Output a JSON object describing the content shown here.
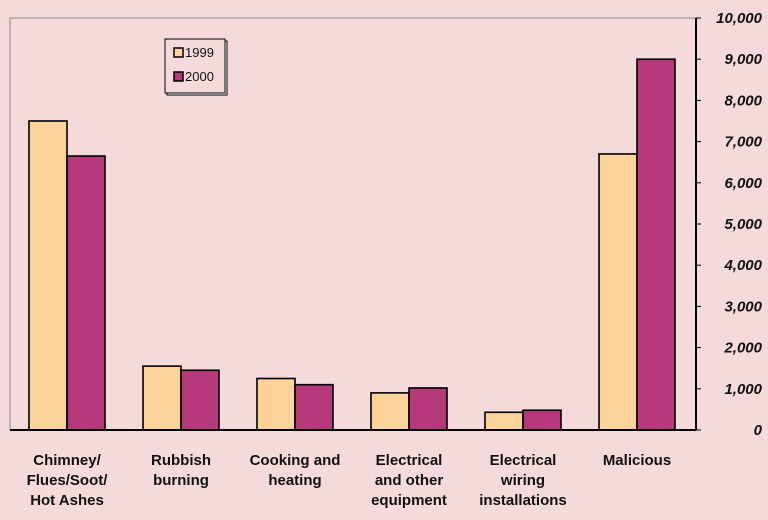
{
  "chart_data": {
    "type": "bar",
    "title": "",
    "xlabel": "",
    "ylabel": "",
    "categories": [
      [
        "Chimney/",
        "Flues/Soot/",
        "Hot Ashes"
      ],
      [
        "Rubbish",
        "burning"
      ],
      [
        "Cooking and",
        "heating"
      ],
      [
        "Electrical",
        "and other",
        "equipment"
      ],
      [
        "Electrical",
        "wiring",
        "installations"
      ],
      [
        "Malicious"
      ]
    ],
    "series": [
      {
        "name": "1999",
        "color": "#fdd29b",
        "values": [
          7500,
          1550,
          1250,
          900,
          430,
          6700
        ]
      },
      {
        "name": "2000",
        "color": "#b5387a",
        "values": [
          6650,
          1450,
          1100,
          1020,
          480,
          9000
        ]
      }
    ],
    "ylim": [
      0,
      10000
    ],
    "yticks": [
      0,
      1000,
      2000,
      3000,
      4000,
      5000,
      6000,
      7000,
      8000,
      9000,
      10000
    ],
    "ytick_labels": [
      "0",
      "1,000",
      "2,000",
      "3,000",
      "4,000",
      "5,000",
      "6,000",
      "7,000",
      "8,000",
      "9,000",
      "10,000"
    ],
    "y_axis_position": "right",
    "grid": false,
    "legend_position": "top-left",
    "colors": {
      "background": "#f4dada",
      "plot_border": "#888888",
      "axis": "#000000"
    }
  }
}
